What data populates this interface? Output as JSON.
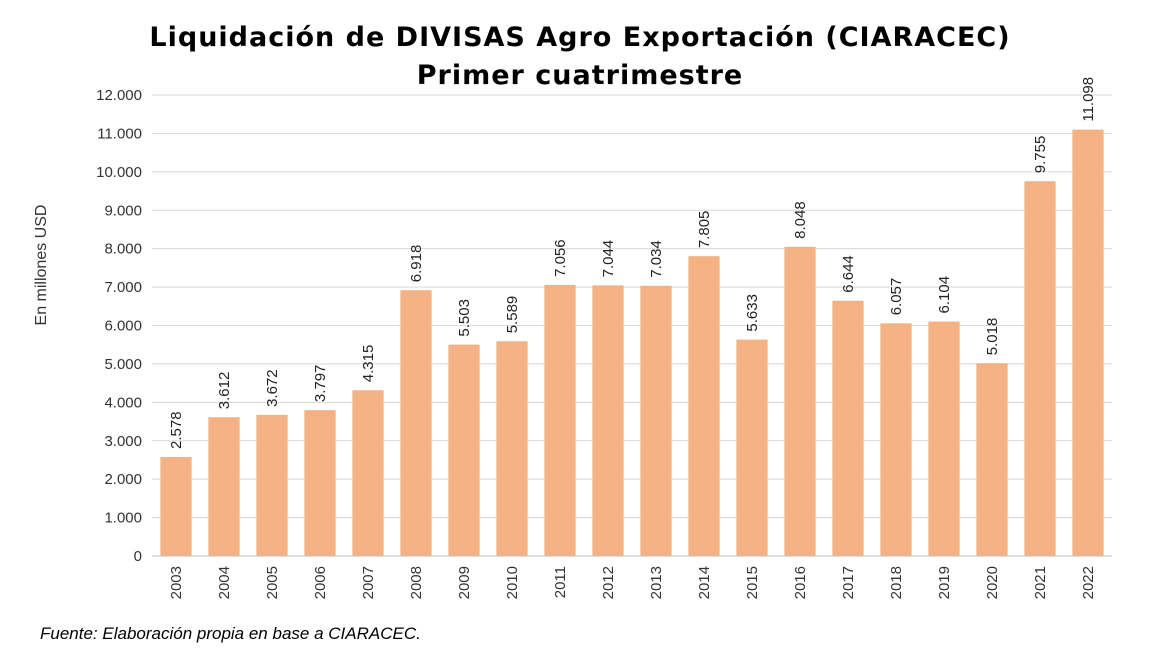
{
  "chart_data": {
    "type": "bar",
    "title": "Liquidación de DIVISAS Agro Exportación (CIARACEC)",
    "subtitle": "Primer cuatrimestre",
    "ylabel": "En millones USD",
    "xlabel": "",
    "ylim": [
      0,
      12000
    ],
    "yticks": [
      "0",
      "1.000",
      "2.000",
      "3.000",
      "4.000",
      "5.000",
      "6.000",
      "7.000",
      "8.000",
      "9.000",
      "10.000",
      "11.000",
      "12.000"
    ],
    "grid": true,
    "categories": [
      "2003",
      "2004",
      "2005",
      "2006",
      "2007",
      "2008",
      "2009",
      "2010",
      "2011",
      "2012",
      "2013",
      "2014",
      "2015",
      "2016",
      "2017",
      "2018",
      "2019",
      "2020",
      "2021",
      "2022"
    ],
    "values": [
      2578,
      3612,
      3672,
      3797,
      4315,
      6918,
      5503,
      5589,
      7056,
      7044,
      7034,
      7805,
      5633,
      8048,
      6644,
      6057,
      6104,
      5018,
      9755,
      11098
    ],
    "value_labels": [
      "2.578",
      "3.612",
      "3.672",
      "3.797",
      "4.315",
      "6.918",
      "5.503",
      "5.589",
      "7.056",
      "7.044",
      "7.034",
      "7.805",
      "5.633",
      "8.048",
      "6.644",
      "6.057",
      "6.104",
      "5.018",
      "9.755",
      "11.098"
    ],
    "bar_color": "#F4B183"
  },
  "source": "Fuente: Elaboración propia en base a CIARACEC."
}
